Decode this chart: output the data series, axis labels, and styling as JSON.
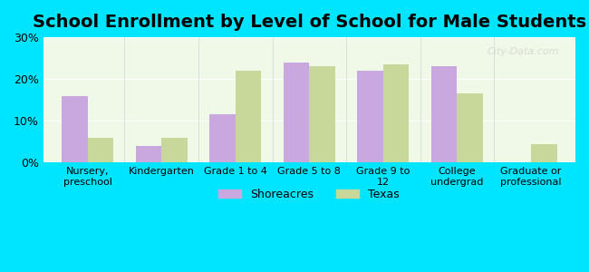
{
  "title": "School Enrollment by Level of School for Male Students",
  "categories": [
    "Nursery,\npreschool",
    "Kindergarten",
    "Grade 1 to 4",
    "Grade 5 to 8",
    "Grade 9 to\n12",
    "College\nundergrad",
    "Graduate or\nprofessional"
  ],
  "shoreacres": [
    16.0,
    4.0,
    11.5,
    24.0,
    22.0,
    23.0,
    0.0
  ],
  "texas": [
    6.0,
    6.0,
    22.0,
    23.0,
    23.5,
    16.5,
    4.5
  ],
  "shoreacres_color": "#c9a8e0",
  "texas_color": "#c8d89a",
  "background_outer": "#00e5ff",
  "background_inner": "#f0f8e8",
  "ylim": [
    0,
    30
  ],
  "yticks": [
    0,
    10,
    20,
    30
  ],
  "yticklabels": [
    "0%",
    "10%",
    "20%",
    "30%"
  ],
  "title_fontsize": 14,
  "legend_labels": [
    "Shoreacres",
    "Texas"
  ],
  "bar_width": 0.35
}
